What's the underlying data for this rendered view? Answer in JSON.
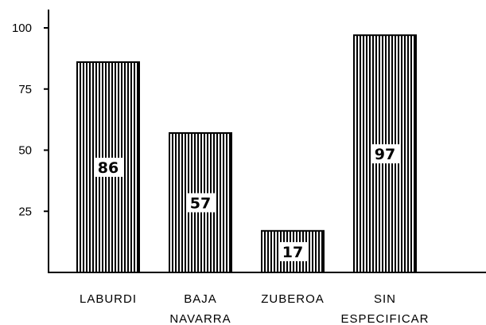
{
  "chart_data": {
    "type": "bar",
    "categories": [
      [
        "LABURDI"
      ],
      [
        "BAJA",
        "NAVARRA"
      ],
      [
        "ZUBEROA"
      ],
      [
        "SIN",
        "ESPECIFICAR"
      ]
    ],
    "values": [
      86,
      57,
      17,
      97
    ],
    "data_labels": [
      "86",
      "57",
      "17",
      "97"
    ],
    "yticks": [
      "25",
      "50",
      "75",
      "100"
    ],
    "ytick_values": [
      25,
      50,
      75,
      100
    ],
    "ylim": [
      0,
      100
    ],
    "title": "",
    "xlabel": "",
    "ylabel": "",
    "grid": false,
    "bar_fill": "vertical-stripes",
    "colors": {
      "bar_stripe": "#000000",
      "background": "#ffffff"
    }
  }
}
